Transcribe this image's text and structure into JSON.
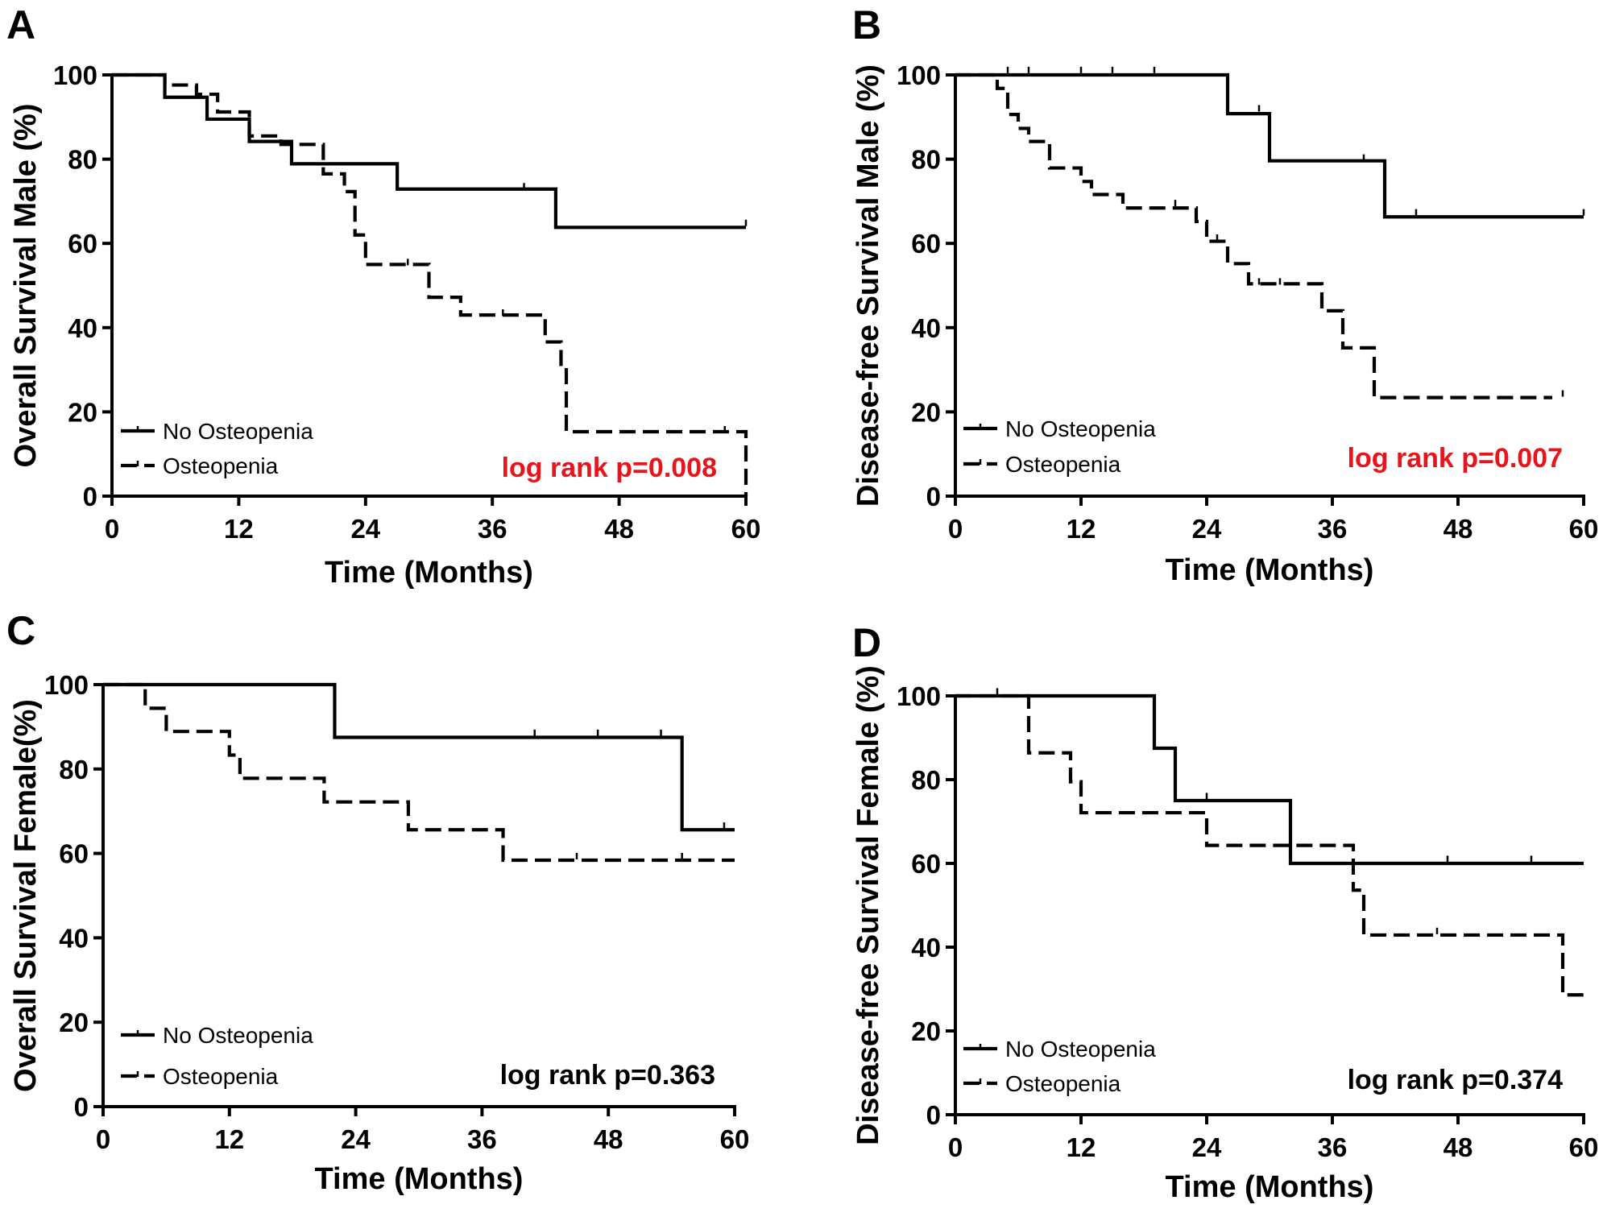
{
  "chart_data": [
    {
      "type": "line",
      "panel": "A",
      "xlabel": "Time (Months)",
      "ylabel": "Overall Survival Male (%)",
      "xlim": [
        0,
        60
      ],
      "ylim": [
        0,
        100
      ],
      "xticks": [
        0,
        12,
        24,
        36,
        48,
        60
      ],
      "yticks": [
        0,
        20,
        40,
        60,
        80,
        100
      ],
      "legend": "bottom-left",
      "annotation": {
        "text": "log rank p=0.008",
        "color": "#e8141c"
      },
      "series": [
        {
          "name": "No Osteopenia",
          "style": "solid",
          "steps": [
            [
              0,
              100
            ],
            [
              5,
              94.7
            ],
            [
              9,
              89.5
            ],
            [
              13,
              84.2
            ],
            [
              17,
              78.9
            ],
            [
              27,
              72.9
            ],
            [
              42,
              63.8
            ],
            [
              60,
              63.8
            ]
          ],
          "censored": [
            [
              39,
              73
            ],
            [
              60,
              64.3
            ]
          ]
        },
        {
          "name": "Osteopenia",
          "style": "dashed",
          "steps": [
            [
              0,
              100
            ],
            [
              5,
              97.6
            ],
            [
              8,
              95.4
            ],
            [
              10,
              91.2
            ],
            [
              13,
              85.5
            ],
            [
              16,
              83.5
            ],
            [
              20,
              76.5
            ],
            [
              22,
              72.3
            ],
            [
              23,
              62
            ],
            [
              24,
              55
            ],
            [
              30,
              47.2
            ],
            [
              33,
              43
            ],
            [
              41,
              36.6
            ],
            [
              42.5,
              30.5
            ],
            [
              43,
              15.3
            ],
            [
              60,
              15.3
            ],
            [
              60,
              0
            ]
          ],
          "censored": [
            [
              13,
              85.5
            ],
            [
              28,
              55
            ],
            [
              37,
              43
            ],
            [
              58,
              15.3
            ]
          ]
        }
      ]
    },
    {
      "type": "line",
      "panel": "B",
      "xlabel": "Time (Months)",
      "ylabel": "Disease-free Survival Male (%)",
      "xlim": [
        0,
        60
      ],
      "ylim": [
        0,
        100
      ],
      "xticks": [
        0,
        12,
        24,
        36,
        48,
        60
      ],
      "yticks": [
        0,
        20,
        40,
        60,
        80,
        100
      ],
      "legend": "bottom-left",
      "annotation": {
        "text": "log rank p=0.007",
        "color": "#e8141c"
      },
      "series": [
        {
          "name": "No Osteopenia",
          "style": "solid",
          "steps": [
            [
              0,
              100
            ],
            [
              26,
              90.8
            ],
            [
              30,
              79.6
            ],
            [
              41,
              66.3
            ],
            [
              60,
              66.3
            ]
          ],
          "censored": [
            [
              5,
              100.6
            ],
            [
              7,
              100.6
            ],
            [
              12,
              100.6
            ],
            [
              15,
              100.6
            ],
            [
              19,
              100.6
            ],
            [
              29,
              91.5
            ],
            [
              39,
              79.8
            ],
            [
              44,
              66.8
            ],
            [
              60,
              66.8
            ]
          ]
        },
        {
          "name": "Osteopenia",
          "style": "dashed",
          "steps": [
            [
              0,
              100
            ],
            [
              4,
              96.8
            ],
            [
              5,
              90.6
            ],
            [
              6,
              87.3
            ],
            [
              7,
              84.2
            ],
            [
              9,
              77.9
            ],
            [
              12,
              74.7
            ],
            [
              13,
              71.6
            ],
            [
              16,
              68.4
            ],
            [
              23,
              65.2
            ],
            [
              24,
              60.5
            ],
            [
              26,
              55.2
            ],
            [
              28,
              50.4
            ],
            [
              35,
              44
            ],
            [
              37,
              35.2
            ],
            [
              40,
              23.4
            ],
            [
              57,
              23.4
            ]
          ],
          "censored": [
            [
              21,
              69
            ],
            [
              25,
              60.8
            ],
            [
              29,
              50.4
            ],
            [
              31,
              50.4
            ],
            [
              58,
              23.8
            ]
          ]
        }
      ]
    },
    {
      "type": "line",
      "panel": "C",
      "xlabel": "Time (Months)",
      "ylabel": "Overall Survival Female(%)",
      "xlim": [
        0,
        60
      ],
      "ylim": [
        0,
        100
      ],
      "xticks": [
        0,
        12,
        24,
        36,
        48,
        60
      ],
      "yticks": [
        0,
        20,
        40,
        60,
        80,
        100
      ],
      "legend": "bottom-left",
      "annotation": {
        "text": "log rank p=0.363",
        "color": "#000000"
      },
      "series": [
        {
          "name": "No Osteopenia",
          "style": "solid",
          "steps": [
            [
              0,
              100
            ],
            [
              22,
              87.5
            ],
            [
              55,
              65.6
            ],
            [
              60,
              65.6
            ]
          ],
          "censored": [
            [
              41,
              88
            ],
            [
              47,
              88
            ],
            [
              53,
              88
            ],
            [
              59,
              66
            ]
          ]
        },
        {
          "name": "Osteopenia",
          "style": "dashed",
          "steps": [
            [
              0,
              100
            ],
            [
              4,
              94.4
            ],
            [
              6,
              88.9
            ],
            [
              12,
              83.3
            ],
            [
              13,
              77.8
            ],
            [
              21,
              72.2
            ],
            [
              29,
              65.6
            ],
            [
              38,
              58.4
            ],
            [
              60,
              58.4
            ]
          ],
          "censored": [
            [
              45,
              58.8
            ],
            [
              55,
              58.8
            ]
          ]
        }
      ]
    },
    {
      "type": "line",
      "panel": "D",
      "xlabel": "Time (Months)",
      "ylabel": "Disease-free Survival Female (%)",
      "xlim": [
        0,
        60
      ],
      "ylim": [
        0,
        100
      ],
      "xticks": [
        0,
        12,
        24,
        36,
        48,
        60
      ],
      "yticks": [
        0,
        20,
        40,
        60,
        80,
        100
      ],
      "legend": "bottom-left",
      "annotation": {
        "text": "log rank p=0.374",
        "color": "#000000"
      },
      "series": [
        {
          "name": "No Osteopenia",
          "style": "solid",
          "steps": [
            [
              0,
              100
            ],
            [
              19,
              87.5
            ],
            [
              21,
              75
            ],
            [
              32,
              60
            ],
            [
              60,
              60
            ]
          ],
          "censored": [
            [
              4,
              100.5
            ],
            [
              24,
              75.5
            ],
            [
              47,
              60.5
            ],
            [
              55,
              60.5
            ]
          ]
        },
        {
          "name": "Osteopenia",
          "style": "dashed",
          "steps": [
            [
              0,
              100
            ],
            [
              7,
              86.4
            ],
            [
              11,
              79.5
            ],
            [
              12,
              72.1
            ],
            [
              24,
              64.3
            ],
            [
              38,
              53.6
            ],
            [
              39,
              42.9
            ],
            [
              58,
              28.6
            ],
            [
              60,
              28.6
            ]
          ],
          "censored": [
            [
              46,
              43.3
            ]
          ]
        }
      ]
    }
  ]
}
